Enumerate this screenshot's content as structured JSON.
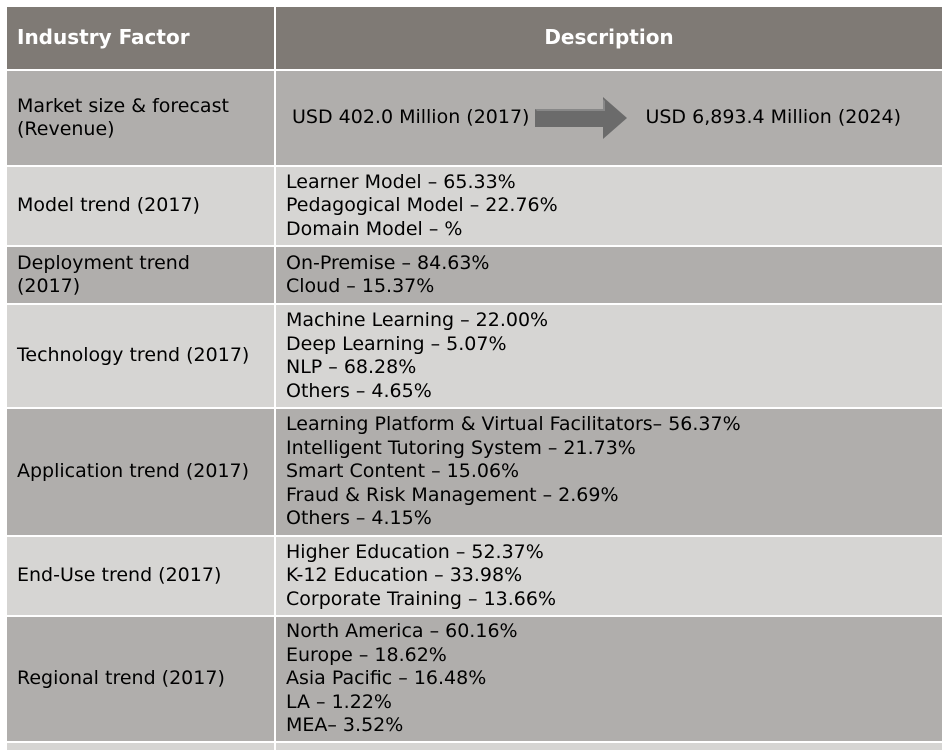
{
  "header": {
    "col1": "Industry Factor",
    "col2": "Description"
  },
  "forecast": {
    "label": "Market size & forecast (Revenue)",
    "from": "USD 402.0 Million (2017)",
    "to": "USD 6,893.4 Million (2024)"
  },
  "rows": [
    {
      "label": "Model trend (2017)",
      "items": [
        "Learner Model – 65.33%",
        "Pedagogical Model – 22.76%",
        "Domain Model – %"
      ]
    },
    {
      "label": "Deployment trend (2017)",
      "items": [
        "On-Premise – 84.63%",
        "Cloud – 15.37%"
      ]
    },
    {
      "label": "Technology trend (2017)",
      "items": [
        "Machine Learning – 22.00%",
        "Deep Learning – 5.07%",
        "NLP – 68.28%",
        "Others – 4.65%"
      ]
    },
    {
      "label": "Application trend (2017)",
      "items": [
        "Learning Platform & Virtual Facilitators– 56.37%",
        "Intelligent Tutoring System – 21.73%",
        "Smart Content – 15.06%",
        "Fraud & Risk Management – 2.69%",
        "Others – 4.15%"
      ]
    },
    {
      "label": "End-Use trend (2017)",
      "items": [
        "Higher Education – 52.37%",
        "K-12 Education – 33.98%",
        "Corporate Training – 13.66%"
      ]
    },
    {
      "label": "Regional trend (2017)",
      "items": [
        "North America – 60.16%",
        "Europe – 18.62%",
        "Asia Pacific – 16.48%",
        "LA – 1.22%",
        "MEA– 3.52%"
      ]
    }
  ],
  "colors": {
    "header": "#7f7a75",
    "dark": "#b0aeac",
    "light": "#d6d5d3",
    "arrow": "#6b6b6b"
  }
}
